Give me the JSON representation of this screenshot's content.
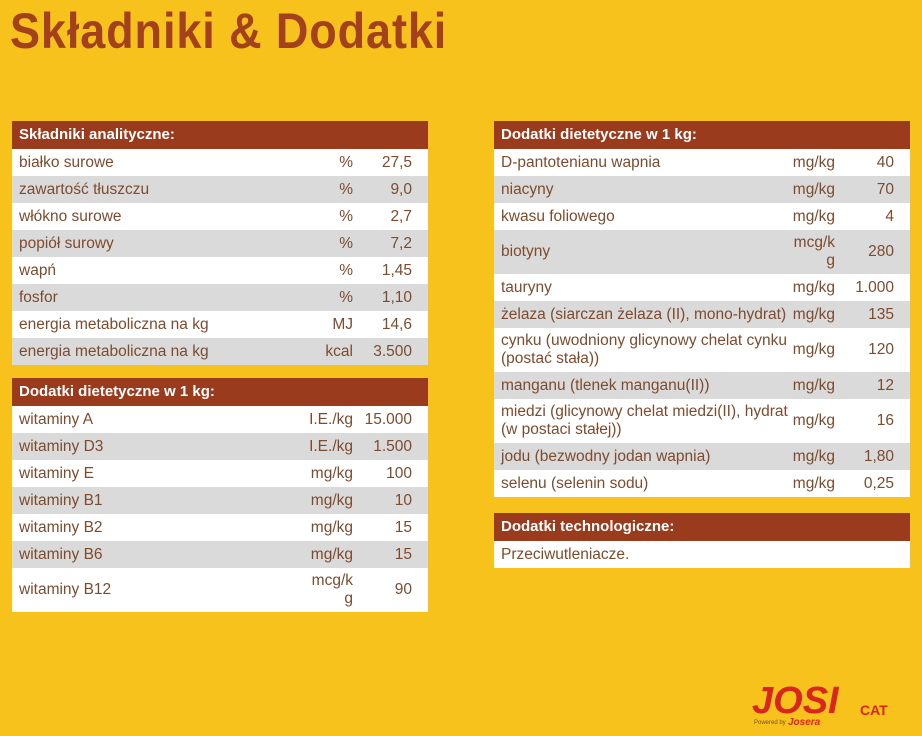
{
  "title": "Składniki & Dodatki",
  "tables": [
    {
      "heading": "Składniki analityczne:",
      "rows": [
        [
          "białko surowe",
          "%",
          "27,5"
        ],
        [
          "zawartość tłuszczu",
          "%",
          "9,0"
        ],
        [
          "włókno surowe",
          "%",
          "2,7"
        ],
        [
          "popiół surowy",
          "%",
          "7,2"
        ],
        [
          "wapń",
          "%",
          "1,45"
        ],
        [
          "fosfor",
          "%",
          "1,10"
        ],
        [
          "energia metaboliczna na kg",
          "MJ",
          "14,6"
        ],
        [
          "energia metaboliczna na kg",
          "kcal",
          "3.500"
        ]
      ]
    },
    {
      "heading": "Dodatki dietetyczne w 1 kg:",
      "rows": [
        [
          "witaminy A",
          "I.E./kg",
          "15.000"
        ],
        [
          "witaminy D3",
          "I.E./kg",
          "1.500"
        ],
        [
          "witaminy E",
          "mg/kg",
          "100"
        ],
        [
          "witaminy B1",
          "mg/kg",
          "10"
        ],
        [
          "witaminy B2",
          "mg/kg",
          "15"
        ],
        [
          "witaminy B6",
          "mg/kg",
          "15"
        ],
        [
          "witaminy B12",
          "mcg/kg",
          "90"
        ]
      ]
    },
    {
      "heading": "Dodatki dietetyczne w 1 kg:",
      "rows": [
        [
          "D-pantotenianu wapnia",
          "mg/kg",
          "40"
        ],
        [
          "niacyny",
          "mg/kg",
          "70"
        ],
        [
          "kwasu foliowego",
          "mg/kg",
          "4"
        ],
        [
          "biotyny",
          "mcg/kg",
          "280"
        ],
        [
          "tauryny",
          "mg/kg",
          "1.000"
        ],
        [
          "żelaza (siarczan żelaza (II), mono-hydrat)",
          "mg/kg",
          "135"
        ],
        [
          "cynku (uwodniony glicynowy chelat cynku (postać stała))",
          "mg/kg",
          "120"
        ],
        [
          "manganu (tlenek manganu(II))",
          "mg/kg",
          "12"
        ],
        [
          "miedzi (glicynowy chelat miedzi(II), hydrat (w postaci stałej))",
          "mg/kg",
          "16"
        ],
        [
          "jodu (bezwodny jodan wapnia)",
          "mg/kg",
          "1,80"
        ],
        [
          "selenu (selenin sodu)",
          "mg/kg",
          "0,25"
        ]
      ]
    },
    {
      "heading": "Dodatki technologiczne:",
      "rows": [
        [
          "Przeciwutleniacze."
        ]
      ]
    }
  ],
  "logo": {
    "brand": "JOSI",
    "sub": "CAT",
    "powered": "Powered by",
    "maker": "Josera"
  }
}
